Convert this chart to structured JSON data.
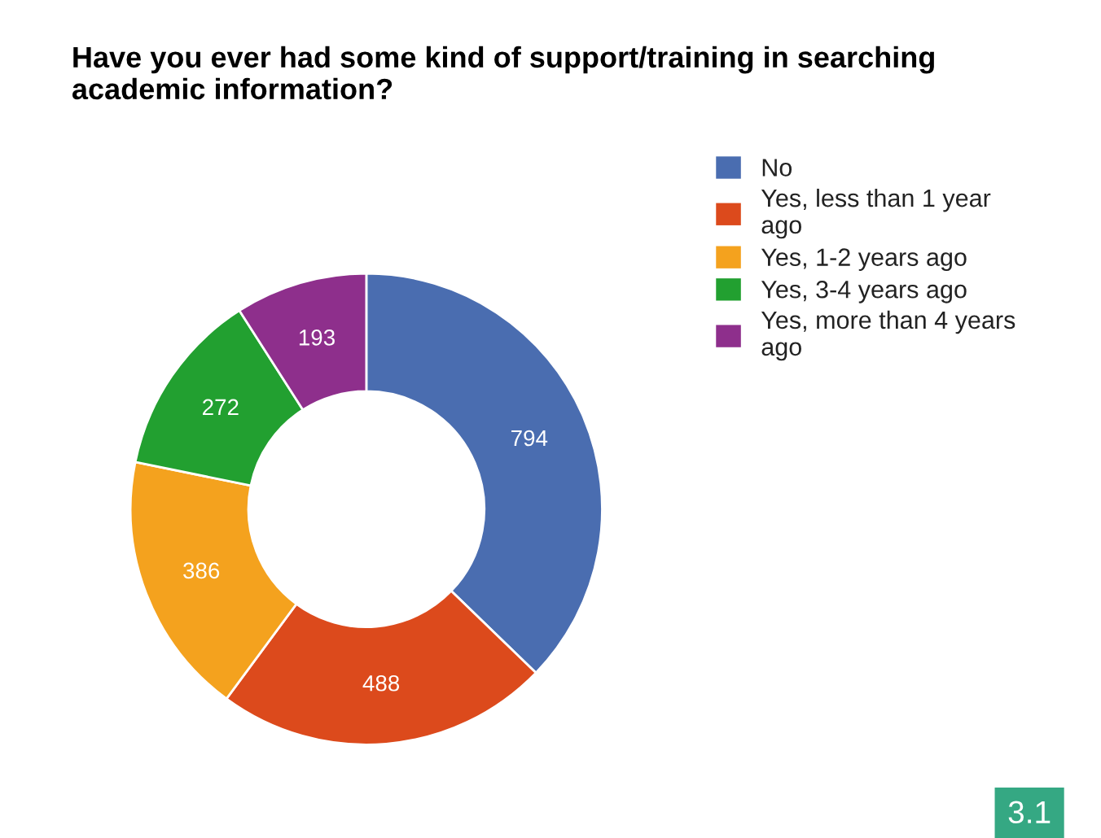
{
  "chart_data": {
    "type": "donut",
    "title": "Have you ever had some kind of support/training in searching academic information?",
    "categories": [
      "No",
      "Yes, less than 1 year ago",
      "Yes, 1-2 years ago",
      "Yes, 3-4 years ago",
      "Yes, more than 4 years ago"
    ],
    "values": [
      794,
      488,
      386,
      272,
      193
    ],
    "colors": [
      "#4a6db0",
      "#dc4a1c",
      "#f4a21e",
      "#22a030",
      "#8e2f8c"
    ],
    "data_labels": true,
    "legend": "right",
    "annotations": [
      "3.1"
    ]
  }
}
